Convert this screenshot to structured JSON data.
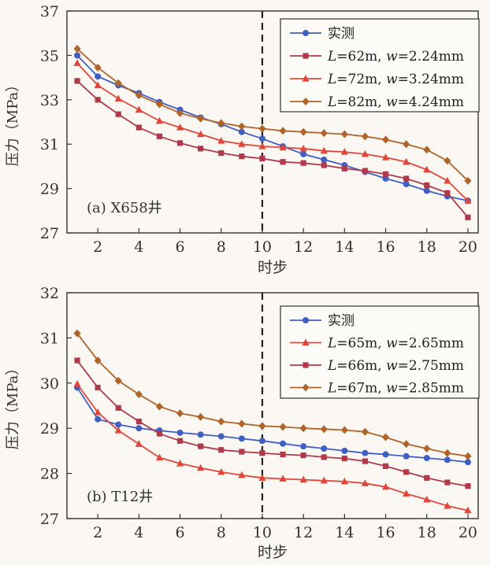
{
  "chart_data": [
    {
      "id": "chart-a",
      "type": "line",
      "panel_label": "(a) X658井",
      "xlabel": "时步",
      "ylabel": "压力（MPa）",
      "xlim": [
        0.5,
        20.5
      ],
      "ylim": [
        27,
        37
      ],
      "x_ticks": [
        2,
        4,
        6,
        8,
        10,
        12,
        14,
        16,
        18,
        20
      ],
      "y_ticks": [
        27,
        29,
        31,
        33,
        35,
        37
      ],
      "marker_line_x": 10,
      "legend_position": "top-right",
      "x": [
        1,
        2,
        3,
        4,
        5,
        6,
        7,
        8,
        9,
        10,
        11,
        12,
        13,
        14,
        15,
        16,
        17,
        18,
        19,
        20
      ],
      "series": [
        {
          "name": "实测",
          "name_parts": [
            {
              "t": "实测",
              "i": false
            }
          ],
          "color": "#3f5fc2",
          "marker": "circle",
          "values": [
            35.0,
            34.05,
            33.65,
            33.3,
            32.9,
            32.55,
            32.2,
            31.9,
            31.55,
            31.25,
            30.9,
            30.55,
            30.3,
            30.05,
            29.75,
            29.45,
            29.2,
            28.9,
            28.65,
            28.45
          ]
        },
        {
          "name": "L=62m, w=2.24mm",
          "name_parts": [
            {
              "t": "L",
              "i": true
            },
            {
              "t": "=62m, ",
              "i": false
            },
            {
              "t": "w",
              "i": true
            },
            {
              "t": "=2.24mm",
              "i": false
            }
          ],
          "color": "#b03a4a",
          "marker": "square",
          "values": [
            33.85,
            33.0,
            32.35,
            31.75,
            31.35,
            31.05,
            30.8,
            30.6,
            30.45,
            30.35,
            30.2,
            30.15,
            30.05,
            29.9,
            29.8,
            29.65,
            29.45,
            29.15,
            28.8,
            27.7
          ]
        },
        {
          "name": "L=72m, w=3.24mm",
          "name_parts": [
            {
              "t": "L",
              "i": true
            },
            {
              "t": "=72m, ",
              "i": false
            },
            {
              "t": "w",
              "i": true
            },
            {
              "t": "=3.24mm",
              "i": false
            }
          ],
          "color": "#e0473a",
          "marker": "triangle",
          "values": [
            34.65,
            33.65,
            33.05,
            32.55,
            32.05,
            31.75,
            31.45,
            31.15,
            31.0,
            30.9,
            30.85,
            30.8,
            30.7,
            30.65,
            30.55,
            30.4,
            30.2,
            29.85,
            29.35,
            28.45
          ]
        },
        {
          "name": "L=82m, w=4.24mm",
          "name_parts": [
            {
              "t": "L",
              "i": true
            },
            {
              "t": "=82m, ",
              "i": false
            },
            {
              "t": "w",
              "i": true
            },
            {
              "t": "=4.24mm",
              "i": false
            }
          ],
          "color": "#b0642a",
          "marker": "diamond",
          "values": [
            35.3,
            34.45,
            33.75,
            33.2,
            32.8,
            32.4,
            32.15,
            31.95,
            31.8,
            31.7,
            31.6,
            31.55,
            31.5,
            31.45,
            31.35,
            31.2,
            31.0,
            30.75,
            30.25,
            29.35
          ]
        }
      ]
    },
    {
      "id": "chart-b",
      "type": "line",
      "panel_label": "(b) T12井",
      "xlabel": "时步",
      "ylabel": "压力（MPa）",
      "xlim": [
        0.5,
        20.5
      ],
      "ylim": [
        27,
        32
      ],
      "x_ticks": [
        2,
        4,
        6,
        8,
        10,
        12,
        14,
        16,
        18,
        20
      ],
      "y_ticks": [
        27,
        28,
        29,
        30,
        31,
        32
      ],
      "marker_line_x": 10,
      "legend_position": "top-right",
      "x": [
        1,
        2,
        3,
        4,
        5,
        6,
        7,
        8,
        9,
        10,
        11,
        12,
        13,
        14,
        15,
        16,
        17,
        18,
        19,
        20
      ],
      "series": [
        {
          "name": "实测",
          "name_parts": [
            {
              "t": "实测",
              "i": false
            }
          ],
          "color": "#3f5fc2",
          "marker": "circle",
          "values": [
            29.9,
            29.2,
            29.08,
            29.0,
            28.95,
            28.9,
            28.86,
            28.82,
            28.77,
            28.72,
            28.66,
            28.6,
            28.55,
            28.5,
            28.45,
            28.42,
            28.38,
            28.34,
            28.3,
            28.25
          ]
        },
        {
          "name": "L=65m, w=2.65mm",
          "name_parts": [
            {
              "t": "L",
              "i": true
            },
            {
              "t": "=65m, ",
              "i": false
            },
            {
              "t": "w",
              "i": true
            },
            {
              "t": "=2.65mm",
              "i": false
            }
          ],
          "color": "#e0473a",
          "marker": "triangle",
          "values": [
            29.98,
            29.35,
            28.95,
            28.65,
            28.35,
            28.22,
            28.12,
            28.03,
            27.96,
            27.9,
            27.88,
            27.86,
            27.84,
            27.82,
            27.78,
            27.7,
            27.55,
            27.42,
            27.28,
            27.18
          ]
        },
        {
          "name": "L=66m, w=2.75mm",
          "name_parts": [
            {
              "t": "L",
              "i": true
            },
            {
              "t": "=66m, ",
              "i": false
            },
            {
              "t": "w",
              "i": true
            },
            {
              "t": "=2.75mm",
              "i": false
            }
          ],
          "color": "#b03a4a",
          "marker": "square",
          "values": [
            30.5,
            29.9,
            29.45,
            29.15,
            28.88,
            28.72,
            28.6,
            28.52,
            28.48,
            28.45,
            28.42,
            28.4,
            28.36,
            28.33,
            28.27,
            28.16,
            28.03,
            27.9,
            27.8,
            27.72
          ]
        },
        {
          "name": "L=67m, w=2.85mm",
          "name_parts": [
            {
              "t": "L",
              "i": true
            },
            {
              "t": "=67m, ",
              "i": false
            },
            {
              "t": "w",
              "i": true
            },
            {
              "t": "=2.85mm",
              "i": false
            }
          ],
          "color": "#b0642a",
          "marker": "diamond",
          "values": [
            31.1,
            30.5,
            30.05,
            29.75,
            29.48,
            29.33,
            29.25,
            29.15,
            29.1,
            29.05,
            29.03,
            29.0,
            28.98,
            28.96,
            28.92,
            28.8,
            28.65,
            28.55,
            28.45,
            28.38
          ]
        }
      ]
    }
  ]
}
